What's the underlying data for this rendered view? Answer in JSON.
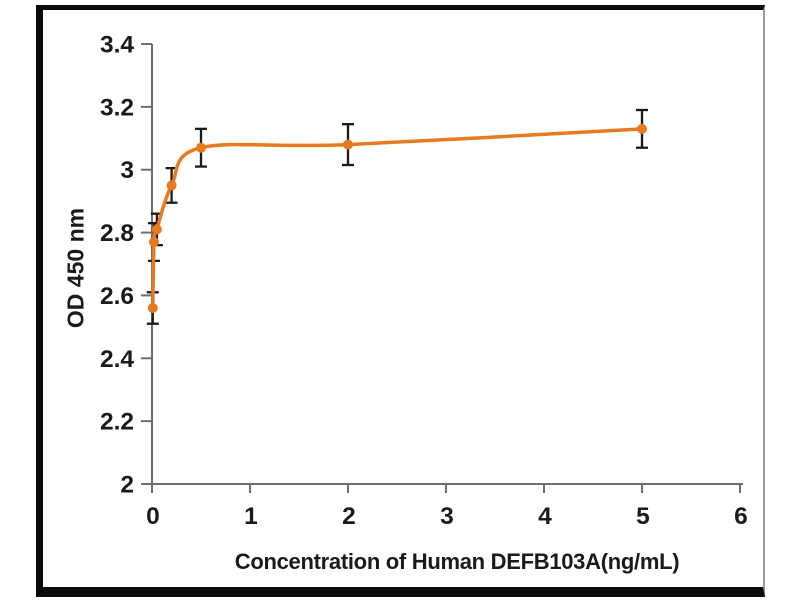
{
  "chart_data": {
    "type": "line",
    "title": "",
    "xlabel": "Concentration of Human DEFB103A(ng/mL)",
    "ylabel": "OD 450 nm",
    "x": [
      0.008,
      0.02,
      0.05,
      0.2,
      0.5,
      2,
      5
    ],
    "y": [
      2.56,
      2.77,
      2.81,
      2.95,
      3.07,
      3.08,
      3.13
    ],
    "y_err": [
      0.05,
      0.06,
      0.05,
      0.055,
      0.06,
      0.065,
      0.06
    ],
    "xlim": [
      0,
      6
    ],
    "ylim": [
      2,
      3.4
    ],
    "x_ticks": [
      0,
      1,
      2,
      3,
      4,
      5,
      6
    ],
    "x_tick_labels": [
      "0",
      "1",
      "2",
      "3",
      "4",
      "5",
      "6"
    ],
    "y_ticks": [
      2,
      2.2,
      2.4,
      2.6,
      2.8,
      3,
      3.2,
      3.4
    ],
    "y_tick_labels": [
      "2",
      "2.2",
      "2.4",
      "2.6",
      "2.8",
      "3",
      "3.2",
      "3.4"
    ],
    "grid": false,
    "legend": "none",
    "marker": "circle",
    "line_style": "smooth",
    "colors": {
      "series": "#E8791F",
      "error_bar": "#1a1a1a",
      "axis": "#6e6e6e",
      "tick_label": "#1a1a1a",
      "frame_border": "#0a0a0a",
      "background": "#ffffff"
    }
  }
}
